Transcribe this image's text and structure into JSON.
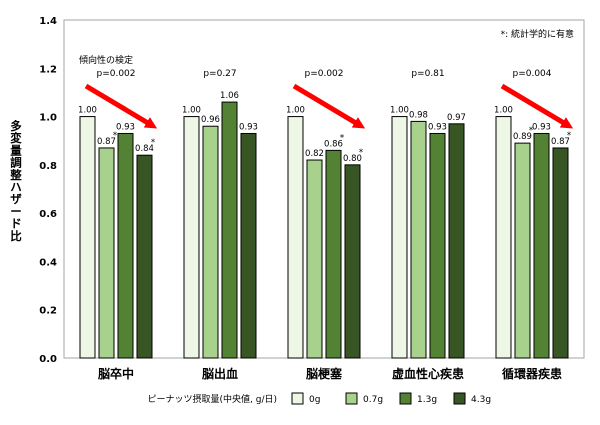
{
  "chart_data": {
    "type": "bar",
    "ylabel": "多変量調整ハザード比",
    "ylim": [
      0,
      1.4
    ],
    "yticks": [
      "0.0",
      "0.2",
      "0.4",
      "0.6",
      "0.8",
      "1.0",
      "1.2",
      "1.4"
    ],
    "categories": [
      "脳卒中",
      "脳出血",
      "脳梗塞",
      "虚血性心疾患",
      "循環器疾患"
    ],
    "series": [
      {
        "name": "0g",
        "values": [
          1.0,
          1.0,
          1.0,
          1.0,
          1.0
        ],
        "labels": [
          "1.00",
          "1.00",
          "1.00",
          "1.00",
          "1.00"
        ],
        "significant": [
          false,
          false,
          false,
          false,
          false
        ]
      },
      {
        "name": "0.7g",
        "values": [
          0.87,
          0.96,
          0.82,
          0.98,
          0.89
        ],
        "labels": [
          "0.87",
          "0.96",
          "0.82",
          "0.98",
          "0.89"
        ],
        "significant": [
          true,
          false,
          false,
          false,
          true
        ]
      },
      {
        "name": "1.3g",
        "values": [
          0.93,
          1.06,
          0.86,
          0.93,
          0.93
        ],
        "labels": [
          "0.93",
          "1.06",
          "0.86",
          "0.93",
          "0.93"
        ],
        "significant": [
          false,
          false,
          true,
          false,
          false
        ]
      },
      {
        "name": "4.3g",
        "values": [
          0.84,
          0.93,
          0.8,
          0.97,
          0.87
        ],
        "labels": [
          "0.84",
          "0.93",
          "0.80",
          "0.97",
          "0.87"
        ],
        "significant": [
          true,
          false,
          true,
          false,
          true
        ]
      }
    ],
    "colors": [
      "#eef6e6",
      "#a9d18e",
      "#548235",
      "#375623"
    ],
    "trend_label": "傾向性の検定",
    "p_values": [
      "p=0.002",
      "p=0.27",
      "p=0.002",
      "p=0.81",
      "p=0.004"
    ],
    "significant_trend": [
      true,
      false,
      true,
      false,
      true
    ],
    "arrow_color": "#ff0000",
    "significance_marker": "*",
    "note": "*: 統計学的に有意",
    "legend_title": "ピーナッツ摂取量(中央値, g/日)",
    "legend_placement": "bottom"
  }
}
